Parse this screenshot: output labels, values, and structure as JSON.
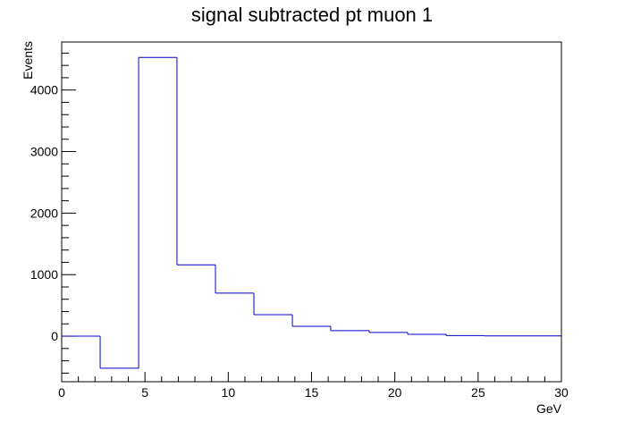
{
  "chart_data": {
    "type": "histogram",
    "title": "signal subtracted pt muon 1",
    "xlabel": "GeV",
    "ylabel": "Events",
    "xlim": [
      0,
      30
    ],
    "ylim": [
      -740,
      4780
    ],
    "x_ticks": [
      0,
      5,
      10,
      15,
      20,
      25,
      30
    ],
    "x_tick_labels": [
      "0",
      "5",
      "10",
      "15",
      "20",
      "25",
      "30"
    ],
    "y_ticks": [
      0,
      1000,
      2000,
      3000,
      4000
    ],
    "y_tick_labels": [
      "0",
      "1000",
      "2000",
      "3000",
      "4000"
    ],
    "bin_edges": [
      0,
      2.31,
      4.62,
      6.92,
      9.23,
      11.54,
      13.85,
      16.15,
      18.46,
      20.77,
      23.08,
      25.38,
      27.69,
      30
    ],
    "values": [
      0,
      -520,
      4530,
      1160,
      700,
      350,
      160,
      90,
      60,
      30,
      10,
      5,
      5
    ],
    "grid": false,
    "line_color": "#0000cc"
  }
}
